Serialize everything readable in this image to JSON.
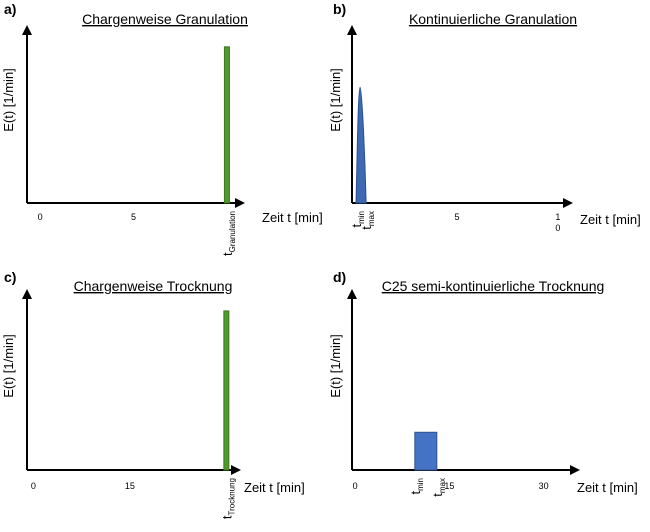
{
  "chart_data": [
    {
      "panel": "a)",
      "title": "Chargenweise Granulation",
      "type": "bar",
      "ylabel": "E(t) [1/min]",
      "xlabel": "Zeit t [min]",
      "xlim": [
        -0.7,
        10.7
      ],
      "ylim": [
        0,
        1
      ],
      "xticks": [
        {
          "value": 0,
          "label": "0"
        },
        {
          "value": 5,
          "label": "5"
        }
      ],
      "bars": [
        {
          "x": 10,
          "width": 0.2,
          "height": 0.97,
          "color": "#4e9a2a",
          "stroke": "#3b7a1e"
        }
      ],
      "markers": [
        {
          "x": 10,
          "main": "t",
          "sub": "Granulation",
          "rotate": true
        }
      ]
    },
    {
      "panel": "b)",
      "title": "Kontinuierliche Granulation",
      "type": "area",
      "ylabel": "E(t) [1/min]",
      "xlabel": "Zeit t [min]",
      "xlim": [
        -0.2,
        10.5
      ],
      "ylim": [
        0,
        1
      ],
      "xticks": [
        {
          "value": 5,
          "label": "5"
        },
        {
          "value": 10,
          "label": "1\n0"
        }
      ],
      "peak": {
        "start": 0.0,
        "peak": 0.2,
        "end": 0.5,
        "height": 0.72,
        "color": "#3e6ab3",
        "stroke": "#2a4f8f"
      },
      "markers": [
        {
          "x": 0.0,
          "main": "t",
          "sub": "min",
          "rotate": true
        },
        {
          "x": 0.5,
          "main": "t",
          "sub": "max",
          "rotate": true
        }
      ]
    },
    {
      "panel": "c)",
      "title": "Chargenweise Trocknung",
      "type": "bar",
      "ylabel": "E(t) [1/min]",
      "xlabel": "Zeit t [min]",
      "xlim": [
        -1.0,
        31.5
      ],
      "ylim": [
        0,
        1
      ],
      "xticks": [
        {
          "value": 0,
          "label": "0"
        },
        {
          "value": 15,
          "label": "15"
        }
      ],
      "bars": [
        {
          "x": 30,
          "width": 0.5,
          "height": 0.97,
          "color": "#4e9a2a",
          "stroke": "#3b7a1e"
        }
      ],
      "markers": [
        {
          "x": 30,
          "main": "t",
          "sub": "Trocknung",
          "rotate": true
        }
      ]
    },
    {
      "panel": "d)",
      "title": "C25 semi-kontinuierliche Trocknung",
      "type": "bar",
      "ylabel": "E(t) [1/min]",
      "xlabel": "Zeit t [min]",
      "xlim": [
        -0.5,
        35.0
      ],
      "ylim": [
        0,
        1
      ],
      "xticks": [
        {
          "value": 0,
          "label": "0"
        },
        {
          "value": 15,
          "label": "15"
        },
        {
          "value": 30,
          "label": "30"
        }
      ],
      "bars": [
        {
          "x_start": 9.5,
          "x_end": 13,
          "height": 0.23,
          "color": "#4472c4",
          "stroke": "#2f528f"
        }
      ],
      "markers": [
        {
          "x": 9.5,
          "main": "t",
          "sub": "min",
          "rotate": true
        },
        {
          "x": 13,
          "main": "t",
          "sub": "max",
          "rotate": true
        }
      ]
    }
  ]
}
